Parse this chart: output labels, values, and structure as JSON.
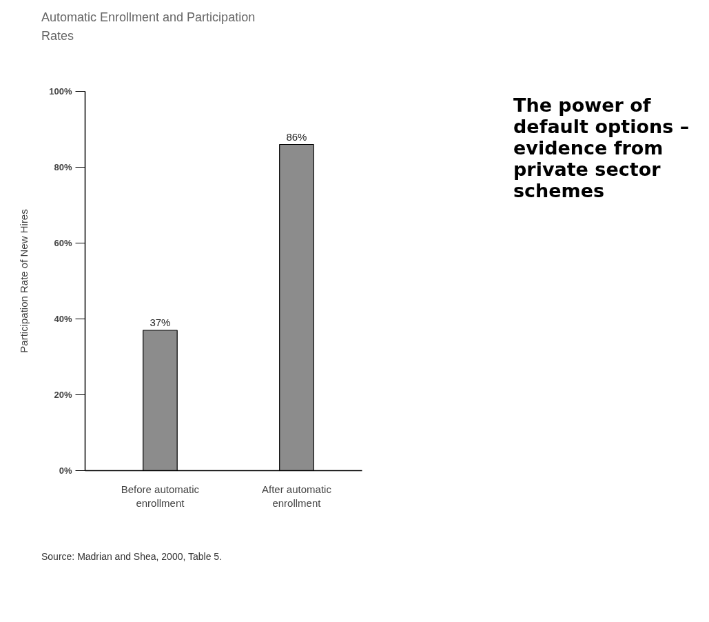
{
  "chart_data": {
    "type": "bar",
    "title": "Automatic Enrollment and Participation Rates",
    "ylabel": "Participation Rate of New Hires",
    "categories": [
      "Before automatic enrollment",
      "After automatic enrollment"
    ],
    "values": [
      37,
      86
    ],
    "value_labels": [
      "37%",
      "86%"
    ],
    "color": "#8c8c8c",
    "ylim": [
      0,
      100
    ],
    "yticks": [
      {
        "value": 0,
        "label": "0%"
      },
      {
        "value": 20,
        "label": "20%"
      },
      {
        "value": 40,
        "label": "40%"
      },
      {
        "value": 60,
        "label": "60%"
      },
      {
        "value": 80,
        "label": "80%"
      },
      {
        "value": 100,
        "label": "100%"
      }
    ],
    "grid": false,
    "annotations": [
      "The power of default options – evidence from private sector schemes",
      "Source: Madrian and Shea, 2000, Table 5."
    ]
  }
}
